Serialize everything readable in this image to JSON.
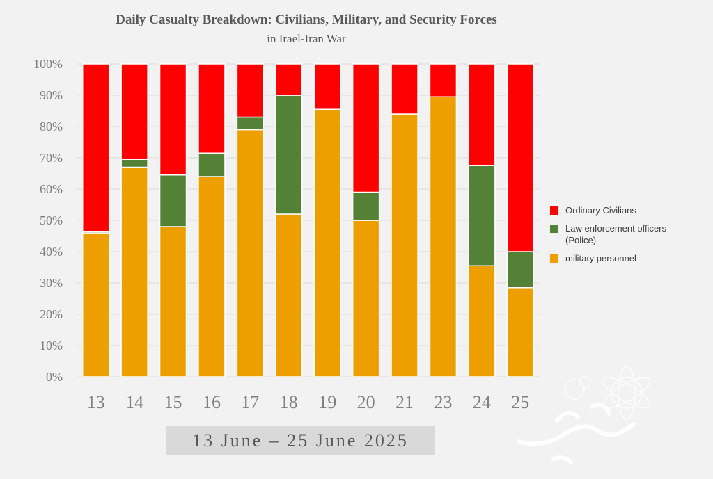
{
  "chart_data": {
    "type": "bar",
    "stacked": "percent",
    "title": "Daily Casualty Breakdown: Civilians, Military, and Security Forces",
    "subtitle": "in Irael-Iran War",
    "categories": [
      "13",
      "14",
      "15",
      "16",
      "17",
      "18",
      "19",
      "20",
      "21",
      "23",
      "24",
      "25"
    ],
    "series": [
      {
        "name": "military personnel",
        "color": "#ED9F00",
        "values": [
          46,
          67,
          48,
          64,
          79,
          52,
          85.5,
          50,
          84,
          89.5,
          35.5,
          28.5
        ]
      },
      {
        "name": "Law enforcement officers (Police)",
        "color": "#538135",
        "values": [
          0.5,
          2.5,
          16.5,
          7.5,
          4,
          38,
          0,
          9,
          0,
          0,
          32,
          11.5
        ]
      },
      {
        "name": "Ordinary Civilians",
        "color": "#FF0000",
        "values": [
          53.5,
          30.5,
          35.5,
          28.5,
          17,
          10,
          14.5,
          41,
          16,
          10.5,
          32.5,
          60
        ]
      }
    ],
    "ylim": [
      0,
      100
    ],
    "yticks": [
      "0%",
      "10%",
      "20%",
      "30%",
      "40%",
      "50%",
      "60%",
      "70%",
      "80%",
      "90%",
      "100%"
    ],
    "legend_position": "right",
    "grid": true,
    "xlabel": "13 June – 25 June 2025"
  },
  "legend": [
    {
      "label": "Ordinary Civilians",
      "color": "#FF0000"
    },
    {
      "label": "Law enforcement officers (Police)",
      "color": "#538135"
    },
    {
      "label": "military personnel",
      "color": "#ED9F00"
    }
  ]
}
